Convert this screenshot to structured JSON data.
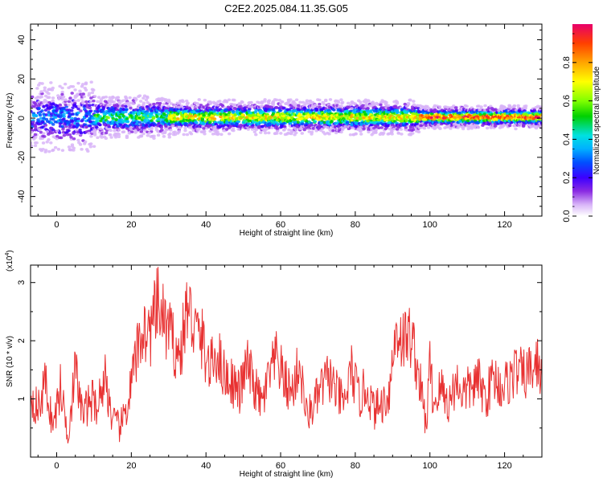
{
  "figure": {
    "title": "C2E2.2025.084.11.35.G05"
  },
  "chart_data": [
    {
      "type": "heatmap",
      "xlabel": "Height of straight line (km)",
      "ylabel": "Frequency (Hz)",
      "xlim": [
        -7,
        130
      ],
      "ylim": [
        -50,
        48
      ],
      "x_ticks": [
        0,
        20,
        40,
        60,
        80,
        100,
        120
      ],
      "y_ticks": [
        -40,
        -20,
        0,
        20,
        40
      ],
      "grid": false,
      "colorbar": {
        "label": "Normalized spectral amplitude",
        "range": [
          0.0,
          1.0
        ],
        "ticks": [
          0.0,
          0.2,
          0.4,
          0.6,
          0.8
        ],
        "tick_labels": [
          "0.0",
          "0.2",
          "0.4",
          "0.6",
          "0.8"
        ],
        "colormap": [
          "#ffffff",
          "#d8b4f8",
          "#8a2be2",
          "#3c00ff",
          "#0050ff",
          "#00b0ff",
          "#00e0e0",
          "#00d000",
          "#80ff00",
          "#ffff00",
          "#ffa500",
          "#ff4000",
          "#e8006a"
        ]
      },
      "band": {
        "center_freq_hz": 0.5,
        "segments": [
          {
            "x": [
              -7,
              10
            ],
            "width_hz": 18,
            "core_amplitude": 0.35
          },
          {
            "x": [
              10,
              30
            ],
            "width_hz": 11,
            "core_amplitude": 0.55
          },
          {
            "x": [
              30,
              97
            ],
            "width_hz": 9,
            "core_amplitude": 0.75
          },
          {
            "x": [
              97,
              130
            ],
            "width_hz": 6,
            "core_amplitude": 0.92
          }
        ]
      }
    },
    {
      "type": "line",
      "xlabel": "Height of straight line (km)",
      "ylabel": "SNR (10 * v/v)",
      "y_scale_label": "(x10",
      "y_scale_exponent": "4",
      "y_scale_suffix": ")",
      "xlim": [
        -7,
        130
      ],
      "ylim": [
        0,
        3.3
      ],
      "x_ticks": [
        0,
        20,
        40,
        60,
        80,
        100,
        120
      ],
      "y_ticks": [
        1,
        2,
        3
      ],
      "grid": false,
      "line_color": "#e83232",
      "series": [
        {
          "x": [
            -7,
            -5,
            -3,
            -1,
            1,
            3,
            5,
            7,
            9,
            11,
            13,
            15,
            17,
            19,
            21,
            23,
            25,
            27,
            29,
            31,
            33,
            35,
            37,
            39,
            41,
            43,
            45,
            47,
            49,
            51,
            53,
            55,
            57,
            59,
            61,
            63,
            65,
            67,
            69,
            71,
            73,
            75,
            77,
            79,
            81,
            83,
            85,
            87,
            89,
            91,
            93,
            95,
            97,
            98,
            99,
            100,
            101,
            103,
            105,
            107,
            109,
            111,
            113,
            115,
            117,
            119,
            121,
            123,
            125,
            127,
            129,
            130
          ],
          "values": [
            1.1,
            0.8,
            1.3,
            0.5,
            1.2,
            0.4,
            1.5,
            0.7,
            1.0,
            0.9,
            1.4,
            0.6,
            0.5,
            0.9,
            1.6,
            2.2,
            2.1,
            2.6,
            2.3,
            2.0,
            1.7,
            2.6,
            2.2,
            2.0,
            1.5,
            1.8,
            1.4,
            1.3,
            1.1,
            1.6,
            1.2,
            0.9,
            1.4,
            1.7,
            1.3,
            1.1,
            1.6,
            0.7,
            0.9,
            1.2,
            1.4,
            1.1,
            0.9,
            1.5,
            1.0,
            1.2,
            0.8,
            0.9,
            1.1,
            2.2,
            2.0,
            2.1,
            1.4,
            1.0,
            0.5,
            1.6,
            0.9,
            1.2,
            0.9,
            1.3,
            1.1,
            1.2,
            1.3,
            1.0,
            1.4,
            1.2,
            1.3,
            1.5,
            1.4,
            1.5,
            1.6,
            1.4
          ]
        }
      ]
    }
  ]
}
